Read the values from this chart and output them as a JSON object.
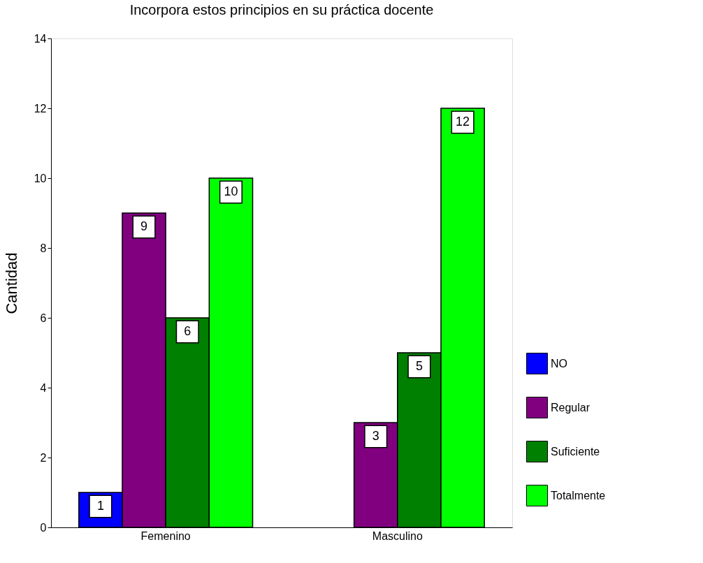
{
  "chart_data": {
    "type": "bar",
    "title": "Incorpora estos principios en su práctica docente",
    "ylabel": "Cantidad",
    "categories": [
      "Femenino",
      "Masculino"
    ],
    "series": [
      {
        "name": "NO",
        "color": "#0000ff",
        "values": [
          1,
          null
        ]
      },
      {
        "name": "Regular",
        "color": "#800080",
        "values": [
          9,
          3
        ]
      },
      {
        "name": "Suficiente",
        "color": "#008000",
        "values": [
          6,
          5
        ]
      },
      {
        "name": "Totalmente",
        "color": "#00ff00",
        "values": [
          10,
          12
        ]
      }
    ],
    "ylim": [
      0,
      14
    ],
    "yticks": [
      0,
      2,
      4,
      6,
      8,
      10,
      12,
      14
    ],
    "grid": false,
    "legend": "right",
    "data_labels": true
  }
}
